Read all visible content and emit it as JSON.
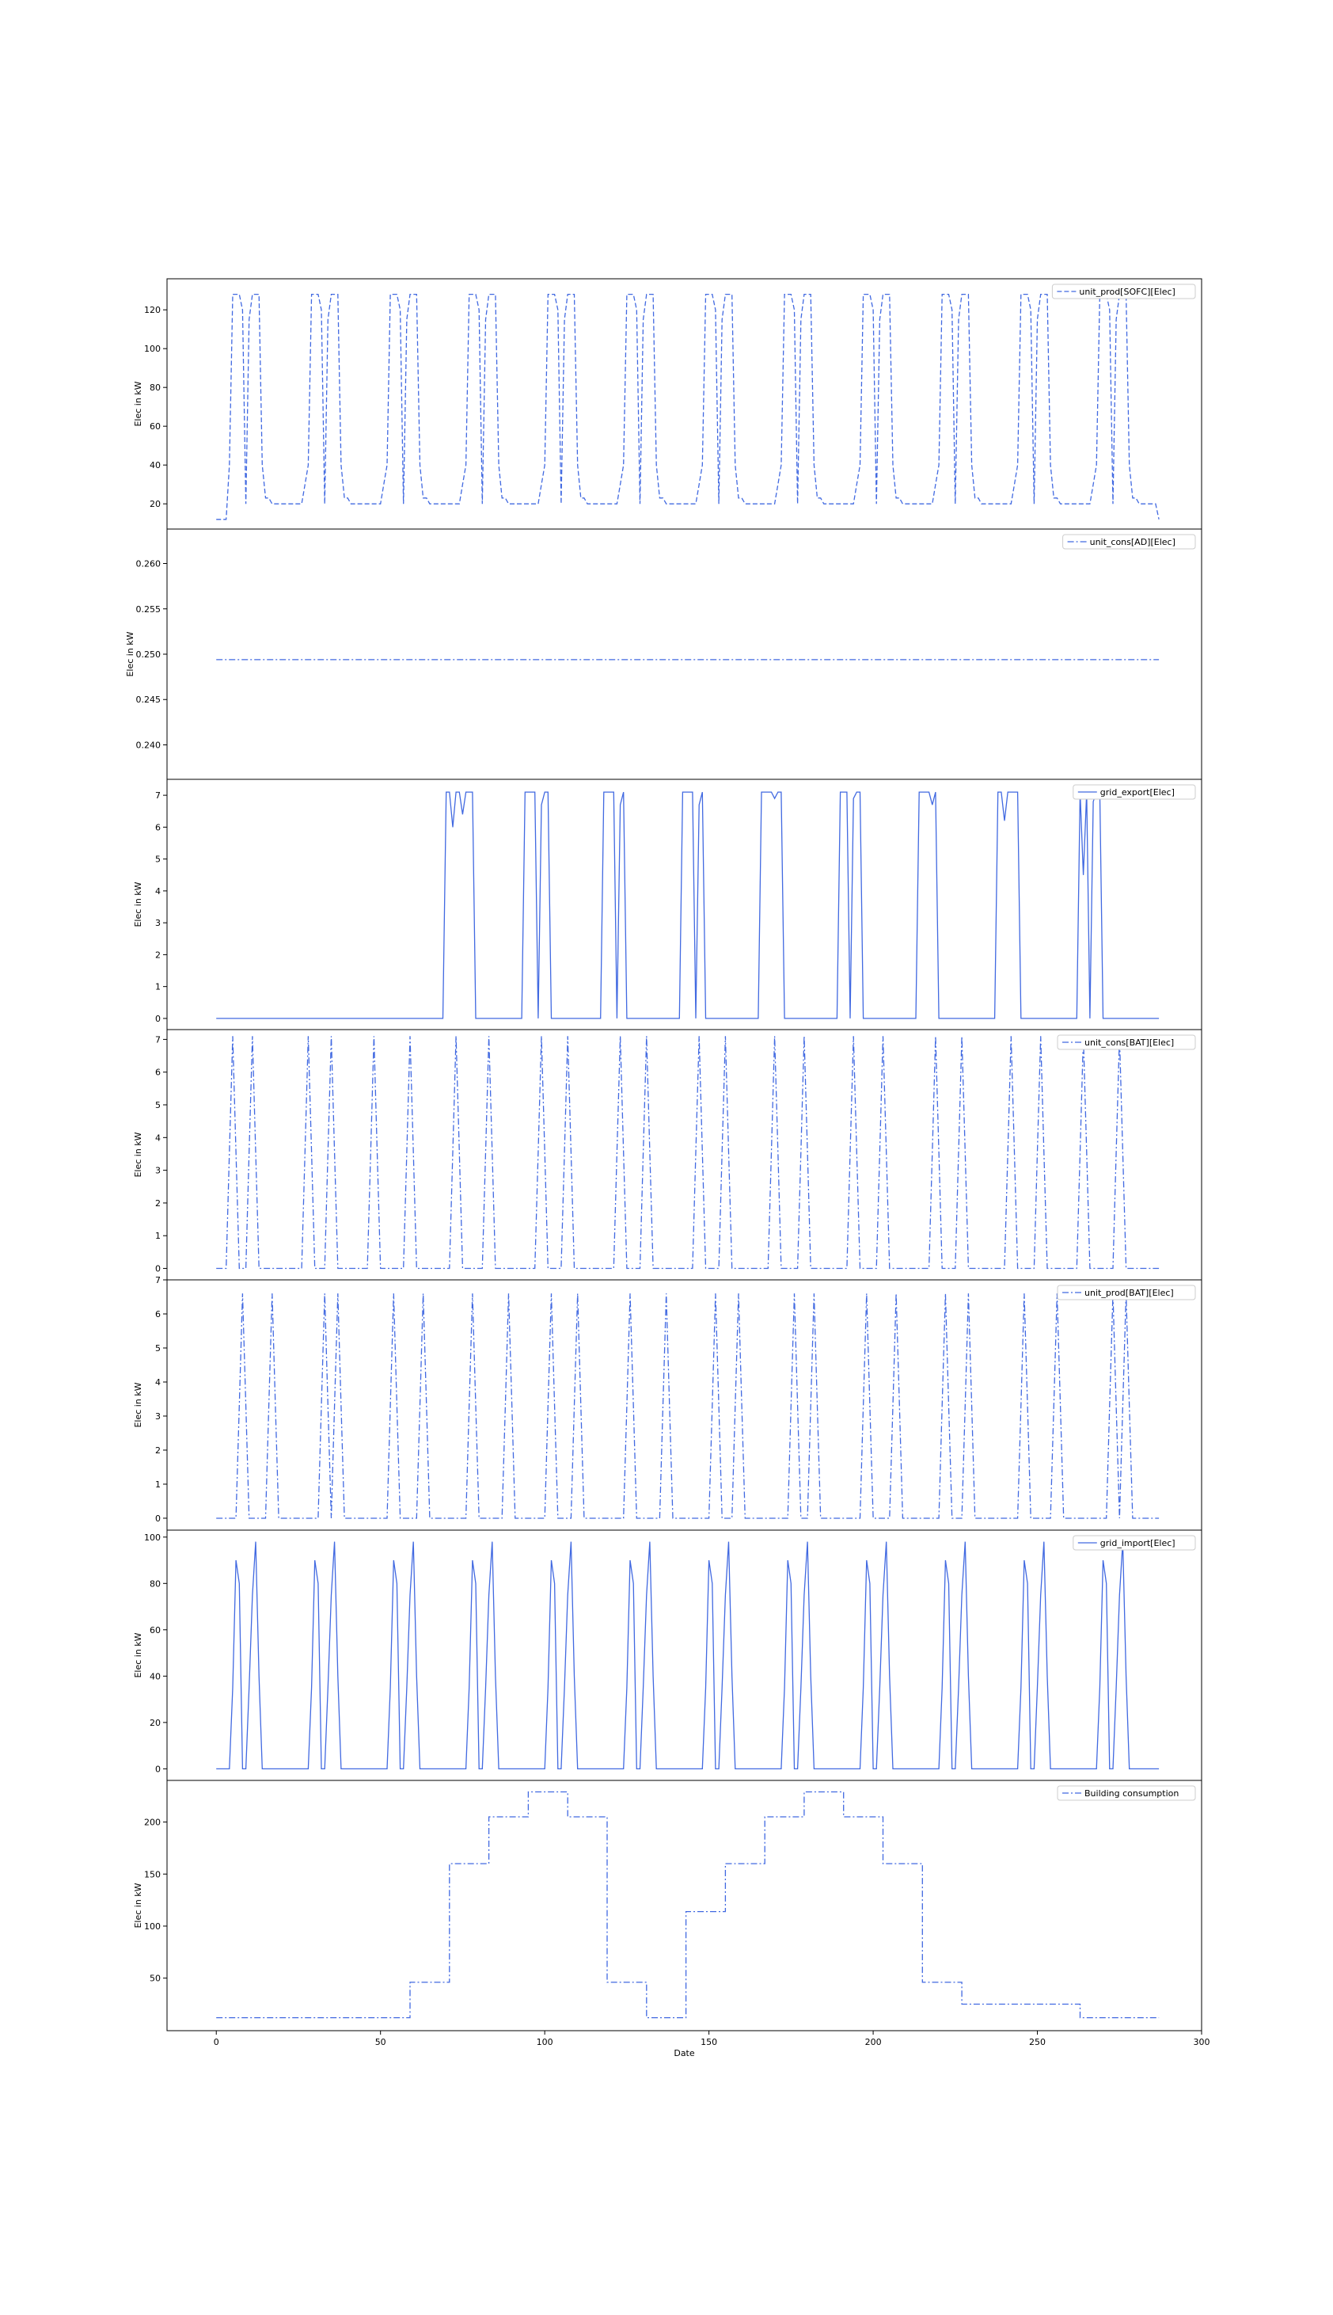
{
  "chart_data": {
    "type": "line",
    "xlabel": "Date",
    "xlim": [
      -15,
      300
    ],
    "xticks": [
      0,
      50,
      100,
      150,
      200,
      250,
      300
    ],
    "line_color": "#4169e1",
    "legend_position": "upper right",
    "panels": [
      {
        "series_name": "unit_prod[SOFC][Elec]",
        "style": "dashed",
        "ylabel": "Elec in kW",
        "ylim": [
          7,
          136
        ],
        "yticks": [
          20,
          40,
          60,
          80,
          100,
          120
        ],
        "pattern": "sofc",
        "x": [
          0,
          287
        ]
      },
      {
        "series_name": "unit_cons[AD][Elec]",
        "style": "dashdot",
        "ylabel": "Elec in kW",
        "ylim": [
          0.2362,
          0.2638
        ],
        "yticks": [
          0.24,
          0.245,
          0.25,
          0.255,
          0.26
        ],
        "ytick_labels": [
          "0.240",
          "0.245",
          "0.250",
          "0.255",
          "0.260"
        ],
        "pattern": "constant",
        "value": 0.2494,
        "x": [
          0,
          287
        ]
      },
      {
        "series_name": "grid_export[Elec]",
        "style": "solid",
        "ylabel": "Elec in kW",
        "ylim": [
          -0.35,
          7.5
        ],
        "yticks": [
          0,
          1,
          2,
          3,
          4,
          5,
          6,
          7
        ],
        "pattern": "export",
        "x": [
          0,
          287
        ]
      },
      {
        "series_name": "unit_cons[BAT][Elec]",
        "style": "dashdot",
        "ylabel": "Elec in kW",
        "ylim": [
          -0.35,
          7.3
        ],
        "yticks": [
          0,
          1,
          2,
          3,
          4,
          5,
          6,
          7
        ],
        "pattern": "spikes",
        "peak": 7.1,
        "spike_x": [
          5,
          11,
          28,
          35,
          48,
          59,
          73,
          83,
          99,
          107,
          123,
          131,
          147,
          155,
          170,
          179,
          194,
          203,
          219,
          227,
          242,
          251,
          264,
          275
        ],
        "x": [
          0,
          287
        ]
      },
      {
        "series_name": "unit_prod[BAT][Elec]",
        "style": "dashdot",
        "ylabel": "Elec in kW",
        "ylim": [
          -0.35,
          7.0
        ],
        "yticks": [
          0,
          1,
          2,
          3,
          4,
          5,
          6,
          7
        ],
        "pattern": "spikes",
        "peak": 6.6,
        "spike_x": [
          8,
          17,
          33,
          37,
          54,
          63,
          78,
          89,
          102,
          110,
          126,
          137,
          152,
          159,
          176,
          182,
          198,
          207,
          222,
          229,
          246,
          256,
          273,
          277
        ],
        "x": [
          0,
          287
        ]
      },
      {
        "series_name": "grid_import[Elec]",
        "style": "solid",
        "ylabel": "Elec in kW",
        "ylim": [
          -5,
          103
        ],
        "yticks": [
          0,
          20,
          40,
          60,
          80,
          100
        ],
        "pattern": "import",
        "x": [
          0,
          287
        ]
      },
      {
        "series_name": "Building consumption",
        "style": "dashdot",
        "ylabel": "Elec in kW",
        "ylim": [
          -0.5,
          240
        ],
        "yticks": [
          50,
          100,
          150,
          200
        ],
        "pattern": "steps",
        "steps": [
          [
            0,
            12
          ],
          [
            59,
            12
          ],
          [
            59,
            46
          ],
          [
            71,
            46
          ],
          [
            71,
            160
          ],
          [
            83,
            160
          ],
          [
            83,
            205
          ],
          [
            95,
            205
          ],
          [
            95,
            229
          ],
          [
            107,
            229
          ],
          [
            107,
            205
          ],
          [
            119,
            205
          ],
          [
            119,
            46
          ],
          [
            131,
            46
          ],
          [
            131,
            12
          ],
          [
            143,
            12
          ],
          [
            143,
            114
          ],
          [
            155,
            114
          ],
          [
            155,
            160
          ],
          [
            167,
            160
          ],
          [
            167,
            205
          ],
          [
            179,
            205
          ],
          [
            179,
            229
          ],
          [
            191,
            229
          ],
          [
            191,
            205
          ],
          [
            203,
            205
          ],
          [
            203,
            160
          ],
          [
            215,
            160
          ],
          [
            215,
            46
          ],
          [
            227,
            46
          ],
          [
            227,
            25
          ],
          [
            263,
            25
          ],
          [
            263,
            12
          ],
          [
            287,
            12
          ]
        ]
      }
    ]
  }
}
